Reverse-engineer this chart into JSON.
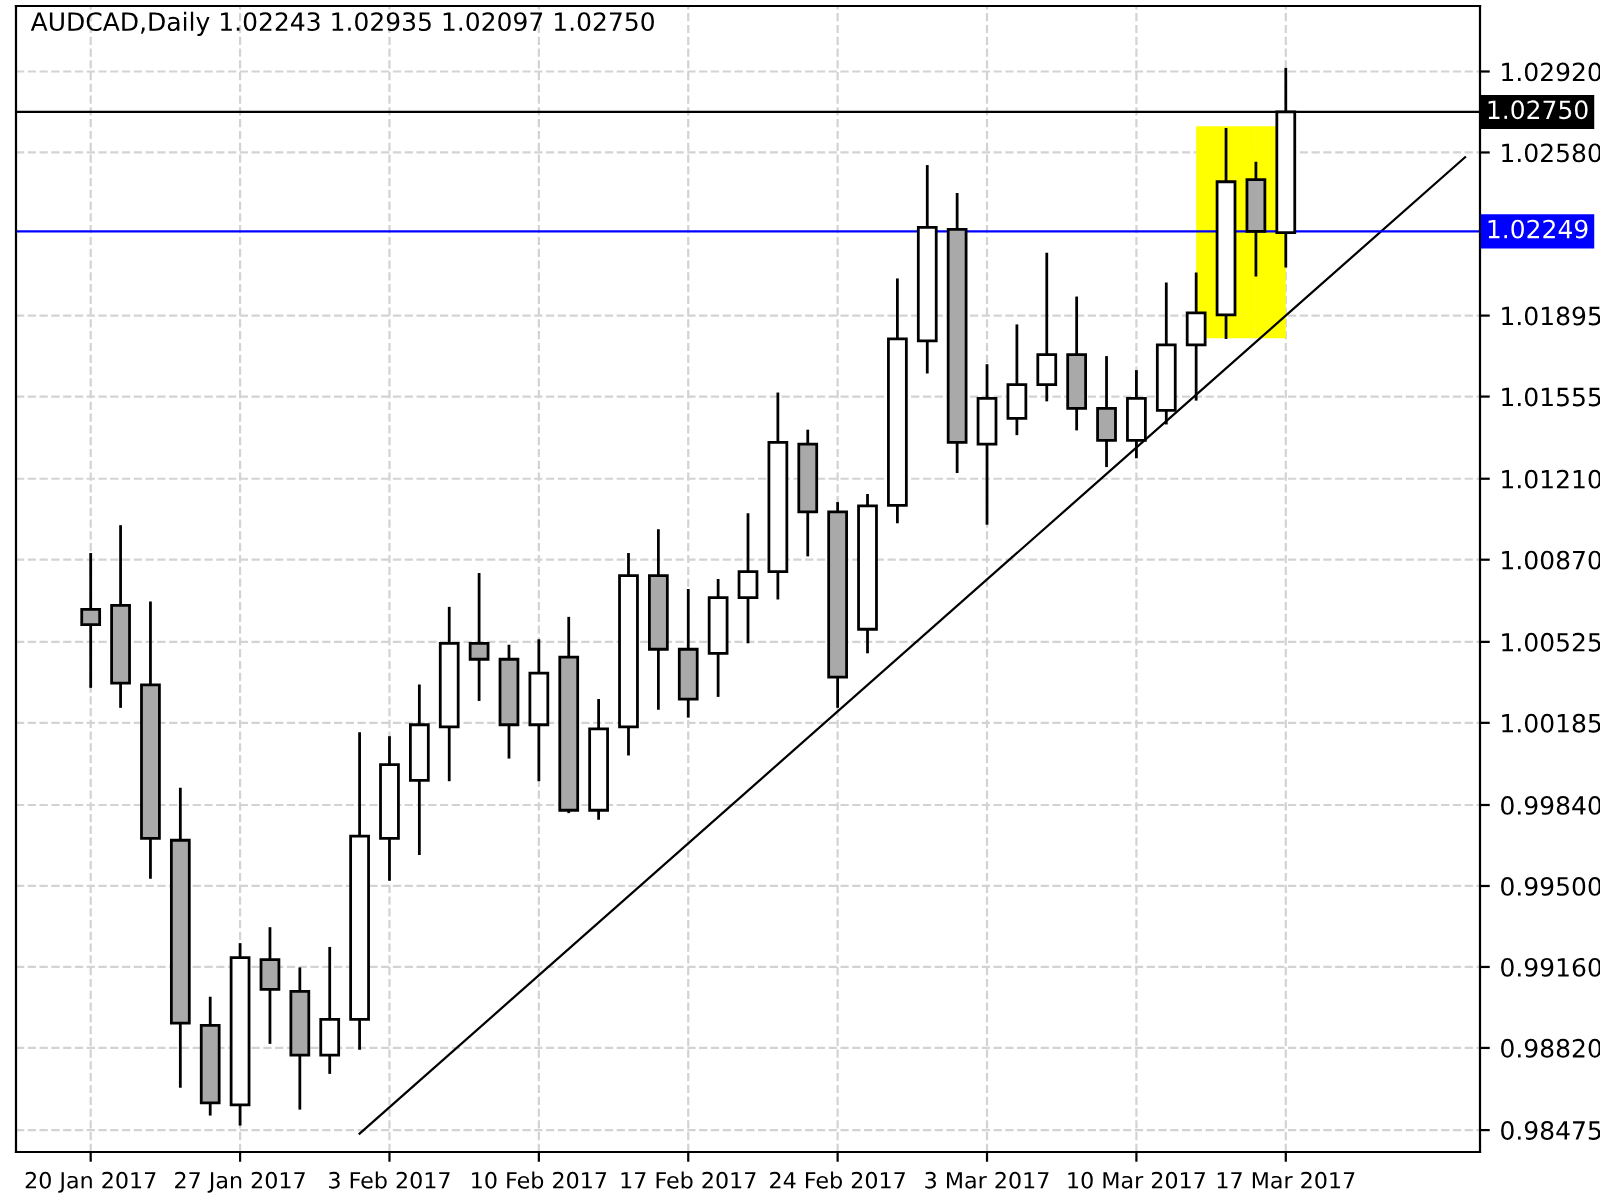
{
  "chart_data": {
    "type": "candlestick",
    "title": "AUDCAD,Daily 1.02243 1.02935 1.02097 1.02750",
    "categories": [
      "20 Jan 2017",
      null,
      null,
      null,
      null,
      "27 Jan 2017",
      null,
      null,
      null,
      null,
      "3 Feb 2017",
      null,
      null,
      null,
      null,
      "10 Feb 2017",
      null,
      null,
      null,
      null,
      "17 Feb 2017",
      null,
      null,
      null,
      null,
      "24 Feb 2017",
      null,
      null,
      null,
      null,
      "3 Mar 2017",
      null,
      null,
      null,
      null,
      "10 Mar 2017",
      null,
      null,
      null,
      null,
      "17 Mar 2017",
      null,
      null,
      null,
      null,
      null,
      null
    ],
    "ohlc": [
      [
        1.00661,
        1.00898,
        1.00332,
        1.00597
      ],
      [
        1.00678,
        1.01015,
        1.00248,
        1.00352
      ],
      [
        1.00344,
        1.00695,
        0.9953,
        0.997
      ],
      [
        0.99692,
        0.99912,
        0.98653,
        0.98924
      ],
      [
        0.98915,
        0.99035,
        0.98536,
        0.98589
      ],
      [
        0.98581,
        0.9926,
        0.98494,
        0.99199
      ],
      [
        0.99191,
        0.99327,
        0.98837,
        0.99066
      ],
      [
        0.99057,
        0.99158,
        0.98561,
        0.9879
      ],
      [
        0.9879,
        0.99244,
        0.98711,
        0.9894
      ],
      [
        0.9894,
        1.00146,
        0.98812,
        0.99709
      ],
      [
        0.997,
        1.00129,
        0.99522,
        1.0001
      ],
      [
        0.99943,
        1.00346,
        0.9963,
        1.00177
      ],
      [
        1.00168,
        1.00672,
        0.9994,
        1.00519
      ],
      [
        1.00519,
        1.00814,
        1.00277,
        1.00452
      ],
      [
        1.00452,
        1.00513,
        1.00035,
        1.00177
      ],
      [
        1.00177,
        1.00536,
        0.9994,
        1.00394
      ],
      [
        1.00461,
        1.0063,
        0.99806,
        0.99818
      ],
      [
        0.99818,
        1.00285,
        0.99778,
        1.0016
      ],
      [
        1.00168,
        1.00898,
        1.00048,
        1.00803
      ],
      [
        1.00803,
        1.00998,
        1.0024,
        1.00494
      ],
      [
        1.00494,
        1.00747,
        1.00207,
        1.00285
      ],
      [
        1.00477,
        1.00789,
        1.00294,
        1.00711
      ],
      [
        1.00711,
        1.01065,
        1.00519,
        1.0082
      ],
      [
        1.0082,
        1.01572,
        1.00703,
        1.01363
      ],
      [
        1.01355,
        1.01416,
        1.00884,
        1.01071
      ],
      [
        1.01071,
        1.01112,
        1.00248,
        1.00377
      ],
      [
        1.00578,
        1.01146,
        1.00477,
        1.01096
      ],
      [
        1.01098,
        1.02051,
        1.01023,
        1.01797
      ],
      [
        1.01789,
        1.02527,
        1.01652,
        1.02265
      ],
      [
        1.02257,
        1.0241,
        1.01234,
        1.01363
      ],
      [
        1.01355,
        1.01691,
        1.01017,
        1.01547
      ],
      [
        1.01463,
        1.01858,
        1.01393,
        1.01605
      ],
      [
        1.01605,
        1.02159,
        1.01535,
        1.01731
      ],
      [
        1.01731,
        1.01975,
        1.01413,
        1.01505
      ],
      [
        1.01505,
        1.01725,
        1.01259,
        1.01371
      ],
      [
        1.01371,
        1.01666,
        1.01296,
        1.01547
      ],
      [
        1.01497,
        1.02034,
        1.01438,
        1.01772
      ],
      [
        1.01772,
        1.02076,
        1.01538,
        1.01906
      ],
      [
        1.01898,
        1.02683,
        1.01797,
        1.02457
      ],
      [
        1.02466,
        1.02541,
        1.02059,
        1.02249
      ],
      [
        1.02243,
        1.02935,
        1.02097,
        1.0275
      ],
      null,
      null,
      null,
      null,
      null,
      null
    ],
    "colors": [
      "#a9a9a9",
      "#a9a9a9",
      "#a9a9a9",
      "#a9a9a9",
      "#a9a9a9",
      "#ffffff",
      "#a9a9a9",
      "#a9a9a9",
      "#ffffff",
      "#ffffff",
      "#ffffff",
      "#ffffff",
      "#ffffff",
      "#a9a9a9",
      "#a9a9a9",
      "#ffffff",
      "#a9a9a9",
      "#ffffff",
      "#ffffff",
      "#a9a9a9",
      "#a9a9a9",
      "#ffffff",
      "#ffffff",
      "#ffffff",
      "#a9a9a9",
      "#a9a9a9",
      "#ffffff",
      "#ffffff",
      "#ffffff",
      "#a9a9a9",
      "#ffffff",
      "#ffffff",
      "#ffffff",
      "#a9a9a9",
      "#a9a9a9",
      "#ffffff",
      "#ffffff",
      "#ffffff",
      "#ffffff",
      "#a9a9a9",
      "#ffffff",
      null,
      null,
      null,
      null,
      null,
      null
    ],
    "series": [
      {
        "type": "bar",
        "color": "#ffff00",
        "values": [
          null,
          null,
          null,
          null,
          null,
          null,
          null,
          null,
          null,
          null,
          null,
          null,
          null,
          null,
          null,
          null,
          null,
          null,
          null,
          null,
          null,
          null,
          null,
          null,
          null,
          null,
          null,
          null,
          null,
          null,
          null,
          null,
          null,
          null,
          null,
          null,
          null,
          0.0089,
          0.0089,
          0.0089,
          null,
          null,
          null,
          null,
          null,
          null,
          null
        ],
        "base": [
          null,
          null,
          null,
          null,
          null,
          null,
          null,
          null,
          null,
          null,
          null,
          null,
          null,
          null,
          null,
          null,
          null,
          null,
          null,
          null,
          null,
          null,
          null,
          null,
          null,
          null,
          null,
          null,
          null,
          null,
          null,
          null,
          null,
          null,
          null,
          null,
          null,
          1.018,
          1.018,
          1.018,
          null,
          null,
          null,
          null,
          null,
          null,
          null
        ]
      },
      {
        "type": "line",
        "color": "#000000",
        "values": [
          null,
          null,
          null,
          null,
          null,
          null,
          null,
          null,
          null,
          0.9846,
          null,
          null,
          null,
          null,
          null,
          null,
          null,
          null,
          null,
          null,
          null,
          null,
          null,
          null,
          null,
          null,
          null,
          null,
          null,
          null,
          null,
          null,
          null,
          null,
          null,
          null,
          null,
          null,
          null,
          null,
          null,
          null,
          null,
          null,
          null,
          null,
          1.0256
        ]
      }
    ],
    "ylim": [
      0.98383,
      1.03195
    ],
    "yticks": [
      {
        "value": 1.0292,
        "label": "1.02920"
      },
      {
        "value": 1.0258,
        "label": "1.02580"
      },
      1.01895,
      1.01555,
      {
        "value": 1.0121,
        "label": "1.01210"
      },
      {
        "value": 1.0087,
        "label": "1.00870"
      },
      1.00525,
      1.00185,
      {
        "value": 0.9984,
        "label": "0.99840"
      },
      {
        "value": 0.995,
        "label": "0.99500"
      },
      {
        "value": 0.9916,
        "label": "0.99160"
      },
      {
        "value": 0.9882,
        "label": "0.98820"
      },
      0.98475
    ],
    "ref_lines": [
      {
        "axis": "y",
        "value": 1.02249,
        "label": "1.02249",
        "color": "#0000ff"
      },
      {
        "axis": "y",
        "value": 1.0275,
        "label": "1.02750",
        "color": "#000000"
      }
    ],
    "grid": true
  }
}
